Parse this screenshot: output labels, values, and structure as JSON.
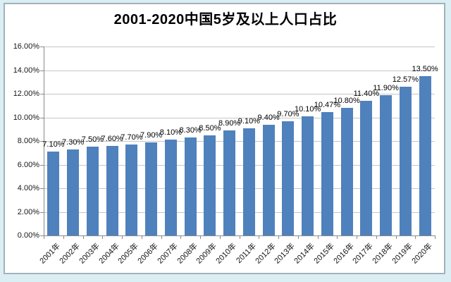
{
  "window": {
    "background_color": "#daeef3",
    "panel_background": "#ffffff",
    "panel_border_color": "#a3b2ba"
  },
  "chart_data": {
    "type": "bar",
    "title": "2001-2020中国5岁及以上人口占比",
    "categories": [
      "2001年",
      "2002年",
      "2003年",
      "2004年",
      "2005年",
      "2006年",
      "2007年",
      "2008年",
      "2009年",
      "2010年",
      "2011年",
      "2012年",
      "2013年",
      "2014年",
      "2015年",
      "2016年",
      "2017年",
      "2018年",
      "2019年",
      "2020年"
    ],
    "values": [
      7.1,
      7.3,
      7.5,
      7.6,
      7.7,
      7.9,
      8.1,
      8.3,
      8.5,
      8.9,
      9.1,
      9.4,
      9.7,
      10.1,
      10.47,
      10.8,
      11.4,
      11.9,
      12.57,
      13.5
    ],
    "data_labels": [
      "7.10%",
      "7.30%",
      "7.50%",
      "7.60%",
      "7.70%",
      "7.90%",
      "8.10%",
      "8.30%",
      "8.50%",
      "8.90%",
      "9.10%",
      "9.40%",
      "9.70%",
      "10.10%",
      "10.47%",
      "10.80%",
      "11.40%",
      "11.90%",
      "12.57%",
      "13.50%"
    ],
    "y_tick_labels": [
      "0.00%",
      "2.00%",
      "4.00%",
      "6.00%",
      "8.00%",
      "10.00%",
      "12.00%",
      "14.00%",
      "16.00%"
    ],
    "ylim": [
      0,
      16
    ],
    "xlabel": "",
    "ylabel": "",
    "grid": true,
    "legend": "none",
    "bar_color": "#4f81bd",
    "gridline_color": "#c6c6c6",
    "axis_color": "#898989",
    "title_color": "#000000",
    "data_label_color": "#000000",
    "tick_label_color": "#161616"
  }
}
